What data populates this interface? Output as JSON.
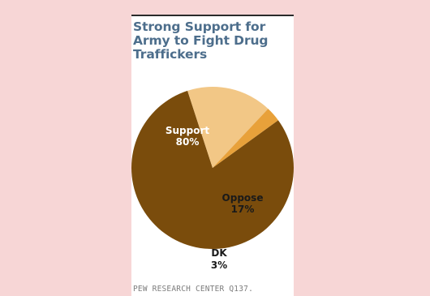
{
  "chart_data": {
    "type": "pie",
    "title": "Strong Support for Army to Fight Drug Traffickers",
    "slices": [
      {
        "label": "Support",
        "value": 80,
        "value_label": "80%",
        "color": "#7a4c0c",
        "text_color": "#ffffff"
      },
      {
        "label": "Oppose",
        "value": 17,
        "value_label": "17%",
        "color": "#f2c786",
        "text_color": "#1a1a1a"
      },
      {
        "label": "DK",
        "value": 3,
        "value_label": "3%",
        "color": "#e8a13a",
        "text_color": "#1a1a1a"
      }
    ]
  },
  "source": "PEW RESEARCH CENTER Q137."
}
